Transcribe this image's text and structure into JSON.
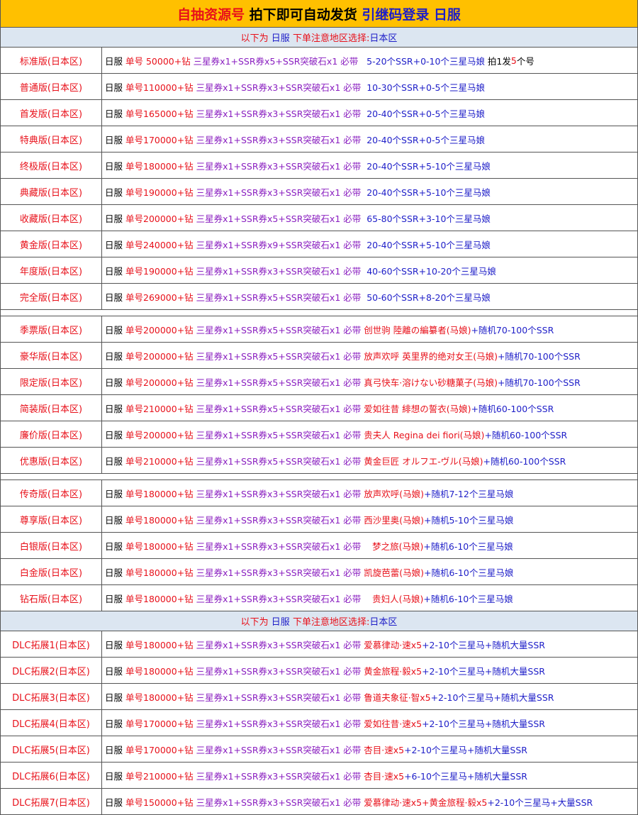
{
  "header": {
    "title": [
      {
        "text": "自抽资源号 ",
        "color": "#e8101a"
      },
      {
        "text": "拍下即可自动发货 ",
        "color": "#000000"
      },
      {
        "text": "引继码登录 日服",
        "color": "#1e1ec8"
      }
    ]
  },
  "sections": [
    {
      "subheader": [
        {
          "text": "以下为 ",
          "color": "#e8101a"
        },
        {
          "text": "日服 ",
          "color": "#1e1ec8"
        },
        {
          "text": "下单注意地区选择:",
          "color": "#e8101a"
        },
        {
          "text": "日本区",
          "color": "#1e1ec8"
        }
      ],
      "rows": [
        {
          "label": "标准版(日本区)",
          "desc": [
            {
              "text": "日服",
              "color": "#000000"
            },
            {
              "text": " 单号 50000+钻",
              "color": "#e8101a"
            },
            {
              "text": " 三星券x1+SSR券x5+SSR突破石x1 必带",
              "color": "#8a1fc0"
            },
            {
              "text": "   5-20个SSR+0-10个三星马娘",
              "color": "#1e1ec8"
            },
            {
              "text": " 拍1发",
              "color": "#000000"
            },
            {
              "text": "5",
              "color": "#e8101a"
            },
            {
              "text": "个号",
              "color": "#000000"
            }
          ]
        },
        {
          "label": "普通版(日本区)",
          "desc": [
            {
              "text": "日服",
              "color": "#000000"
            },
            {
              "text": " 单号110000+钻",
              "color": "#e8101a"
            },
            {
              "text": " 三星券x1+SSR券x3+SSR突破石x1 必带",
              "color": "#8a1fc0"
            },
            {
              "text": "  10-30个SSR+0-5个三星马娘",
              "color": "#1e1ec8"
            }
          ]
        },
        {
          "label": "首发版(日本区)",
          "desc": [
            {
              "text": "日服",
              "color": "#000000"
            },
            {
              "text": " 单号165000+钻",
              "color": "#e8101a"
            },
            {
              "text": " 三星券x1+SSR券x3+SSR突破石x1 必带",
              "color": "#8a1fc0"
            },
            {
              "text": "  20-40个SSR+0-5个三星马娘",
              "color": "#1e1ec8"
            }
          ]
        },
        {
          "label": "特典版(日本区)",
          "desc": [
            {
              "text": "日服",
              "color": "#000000"
            },
            {
              "text": " 单号170000+钻",
              "color": "#e8101a"
            },
            {
              "text": " 三星券x1+SSR券x3+SSR突破石x1 必带",
              "color": "#8a1fc0"
            },
            {
              "text": "  20-40个SSR+0-5个三星马娘",
              "color": "#1e1ec8"
            }
          ]
        },
        {
          "label": "终极版(日本区)",
          "desc": [
            {
              "text": "日服",
              "color": "#000000"
            },
            {
              "text": " 单号180000+钻",
              "color": "#e8101a"
            },
            {
              "text": " 三星券x1+SSR券x3+SSR突破石x1 必带",
              "color": "#8a1fc0"
            },
            {
              "text": "  20-40个SSR+5-10个三星马娘",
              "color": "#1e1ec8"
            }
          ]
        },
        {
          "label": "典藏版(日本区)",
          "desc": [
            {
              "text": "日服",
              "color": "#000000"
            },
            {
              "text": " 单号190000+钻",
              "color": "#e8101a"
            },
            {
              "text": " 三星券x1+SSR券x3+SSR突破石x1 必带",
              "color": "#8a1fc0"
            },
            {
              "text": "  20-40个SSR+5-10个三星马娘",
              "color": "#1e1ec8"
            }
          ]
        },
        {
          "label": "收藏版(日本区)",
          "desc": [
            {
              "text": "日服",
              "color": "#000000"
            },
            {
              "text": " 单号200000+钻",
              "color": "#e8101a"
            },
            {
              "text": " 三星券x1+SSR券x5+SSR突破石x1 必带",
              "color": "#8a1fc0"
            },
            {
              "text": "  65-80个SSR+3-10个三星马娘",
              "color": "#1e1ec8"
            }
          ]
        },
        {
          "label": "黄金版(日本区)",
          "desc": [
            {
              "text": "日服",
              "color": "#000000"
            },
            {
              "text": " 单号240000+钻",
              "color": "#e8101a"
            },
            {
              "text": " 三星券x1+SSR券x9+SSR突破石x1 必带",
              "color": "#8a1fc0"
            },
            {
              "text": "  20-40个SSR+5-10个三星马娘",
              "color": "#1e1ec8"
            }
          ]
        },
        {
          "label": "年度版(日本区)",
          "desc": [
            {
              "text": "日服",
              "color": "#000000"
            },
            {
              "text": " 单号190000+钻",
              "color": "#e8101a"
            },
            {
              "text": " 三星券x1+SSR券x3+SSR突破石x1 必带",
              "color": "#8a1fc0"
            },
            {
              "text": "  40-60个SSR+10-20个三星马娘",
              "color": "#1e1ec8"
            }
          ]
        },
        {
          "label": "完全版(日本区)",
          "desc": [
            {
              "text": "日服",
              "color": "#000000"
            },
            {
              "text": " 单号269000+钻",
              "color": "#e8101a"
            },
            {
              "text": " 三星券x1+SSR券x5+SSR突破石x1 必带",
              "color": "#8a1fc0"
            },
            {
              "text": "  50-60个SSR+8-20个三星马娘",
              "color": "#1e1ec8"
            }
          ]
        }
      ]
    },
    {
      "rows": [
        {
          "label": "季票版(日本区)",
          "desc": [
            {
              "text": "日服",
              "color": "#000000"
            },
            {
              "text": " 单号200000+钻",
              "color": "#e8101a"
            },
            {
              "text": " 三星券x1+SSR券x5+SSR突破石x1 必带",
              "color": "#8a1fc0"
            },
            {
              "text": " 创世驹 陸離の編纂者(马娘)",
              "color": "#e8101a"
            },
            {
              "text": "+随机70-100个SSR",
              "color": "#1e1ec8"
            }
          ]
        },
        {
          "label": "豪华版(日本区)",
          "desc": [
            {
              "text": "日服",
              "color": "#000000"
            },
            {
              "text": " 单号200000+钻",
              "color": "#e8101a"
            },
            {
              "text": " 三星券x1+SSR券x5+SSR突破石x1 必带",
              "color": "#8a1fc0"
            },
            {
              "text": " 放声欢呼 英里界的绝对女王(马娘)",
              "color": "#e8101a"
            },
            {
              "text": "+随机70-100个SSR",
              "color": "#1e1ec8"
            }
          ]
        },
        {
          "label": "限定版(日本区)",
          "desc": [
            {
              "text": "日服",
              "color": "#000000"
            },
            {
              "text": " 单号200000+钻",
              "color": "#e8101a"
            },
            {
              "text": " 三星券x1+SSR券x5+SSR突破石x1 必带",
              "color": "#8a1fc0"
            },
            {
              "text": " 真弓快车·溶けない砂糖菓子(马娘)",
              "color": "#e8101a"
            },
            {
              "text": "+随机70-100个SSR",
              "color": "#1e1ec8"
            }
          ]
        },
        {
          "label": "简装版(日本区)",
          "desc": [
            {
              "text": "日服",
              "color": "#000000"
            },
            {
              "text": " 单号210000+钻",
              "color": "#e8101a"
            },
            {
              "text": " 三星券x1+SSR券x5+SSR突破石x1 必带",
              "color": "#8a1fc0"
            },
            {
              "text": " 爱如往昔 緋想の誓衣(马娘)",
              "color": "#e8101a"
            },
            {
              "text": "+随机60-100个SSR",
              "color": "#1e1ec8"
            }
          ]
        },
        {
          "label": "廉价版(日本区)",
          "desc": [
            {
              "text": "日服",
              "color": "#000000"
            },
            {
              "text": " 单号200000+钻",
              "color": "#e8101a"
            },
            {
              "text": " 三星券x1+SSR券x5+SSR突破石x1 必带",
              "color": "#8a1fc0"
            },
            {
              "text": " 贵夫人 Regina dei fiori(马娘)",
              "color": "#e8101a"
            },
            {
              "text": "+随机60-100个SSR",
              "color": "#1e1ec8"
            }
          ]
        },
        {
          "label": "优惠版(日本区)",
          "desc": [
            {
              "text": "日服",
              "color": "#000000"
            },
            {
              "text": " 单号210000+钻",
              "color": "#e8101a"
            },
            {
              "text": " 三星券x1+SSR券x5+SSR突破石x1 必带",
              "color": "#8a1fc0"
            },
            {
              "text": " 黄金巨匠 オルフエ-ヴル(马娘)",
              "color": "#e8101a"
            },
            {
              "text": "+随机60-100个SSR",
              "color": "#1e1ec8"
            }
          ]
        }
      ]
    },
    {
      "rows": [
        {
          "label": "传奇版(日本区)",
          "desc": [
            {
              "text": "日服",
              "color": "#000000"
            },
            {
              "text": " 单号180000+钻",
              "color": "#e8101a"
            },
            {
              "text": " 三星券x1+SSR券x3+SSR突破石x1 必带",
              "color": "#8a1fc0"
            },
            {
              "text": " 放声欢呼(马娘)",
              "color": "#e8101a"
            },
            {
              "text": "+随机7-12个三星马娘",
              "color": "#1e1ec8"
            }
          ]
        },
        {
          "label": "尊享版(日本区)",
          "desc": [
            {
              "text": "日服",
              "color": "#000000"
            },
            {
              "text": " 单号180000+钻",
              "color": "#e8101a"
            },
            {
              "text": " 三星券x1+SSR券x3+SSR突破石x1 必带",
              "color": "#8a1fc0"
            },
            {
              "text": " 西沙里奥(马娘)",
              "color": "#e8101a"
            },
            {
              "text": "+随机5-10个三星马娘",
              "color": "#1e1ec8"
            }
          ]
        },
        {
          "label": "白银版(日本区)",
          "desc": [
            {
              "text": "日服",
              "color": "#000000"
            },
            {
              "text": " 单号180000+钻",
              "color": "#e8101a"
            },
            {
              "text": " 三星券x1+SSR券x3+SSR突破石x1 必带",
              "color": "#8a1fc0"
            },
            {
              "text": "    梦之旅(马娘)",
              "color": "#e8101a"
            },
            {
              "text": "+随机6-10个三星马娘",
              "color": "#1e1ec8"
            }
          ]
        },
        {
          "label": "白金版(日本区)",
          "desc": [
            {
              "text": "日服",
              "color": "#000000"
            },
            {
              "text": " 单号180000+钻",
              "color": "#e8101a"
            },
            {
              "text": " 三星券x1+SSR券x3+SSR突破石x1 必带",
              "color": "#8a1fc0"
            },
            {
              "text": " 凯旋芭蕾(马娘)",
              "color": "#e8101a"
            },
            {
              "text": "+随机6-10个三星马娘",
              "color": "#1e1ec8"
            }
          ]
        },
        {
          "label": "钻石版(日本区)",
          "desc": [
            {
              "text": "日服",
              "color": "#000000"
            },
            {
              "text": " 单号180000+钻",
              "color": "#e8101a"
            },
            {
              "text": " 三星券x1+SSR券x3+SSR突破石x1 必带",
              "color": "#8a1fc0"
            },
            {
              "text": "    贵妇人(马娘)",
              "color": "#e8101a"
            },
            {
              "text": "+随机6-10个三星马娘",
              "color": "#1e1ec8"
            }
          ]
        }
      ]
    },
    {
      "subheader": [
        {
          "text": "以下为 ",
          "color": "#e8101a"
        },
        {
          "text": "日服 ",
          "color": "#1e1ec8"
        },
        {
          "text": "下单注意地区选择:",
          "color": "#e8101a"
        },
        {
          "text": "日本区",
          "color": "#1e1ec8"
        }
      ],
      "rows": [
        {
          "label": "DLC拓展1(日本区)",
          "desc": [
            {
              "text": "日服",
              "color": "#000000"
            },
            {
              "text": " 单号180000+钻",
              "color": "#e8101a"
            },
            {
              "text": " 三星券x1+SSR券x3+SSR突破石x1 必带",
              "color": "#8a1fc0"
            },
            {
              "text": " 爱慕律动·速x5",
              "color": "#e8101a"
            },
            {
              "text": "+2-10个三星马+随机大量SSR",
              "color": "#1e1ec8"
            }
          ]
        },
        {
          "label": "DLC拓展2(日本区)",
          "desc": [
            {
              "text": "日服",
              "color": "#000000"
            },
            {
              "text": " 单号180000+钻",
              "color": "#e8101a"
            },
            {
              "text": " 三星券x1+SSR券x3+SSR突破石x1 必带",
              "color": "#8a1fc0"
            },
            {
              "text": " 黄金旅程·毅x5",
              "color": "#e8101a"
            },
            {
              "text": "+2-10个三星马+随机大量SSR",
              "color": "#1e1ec8"
            }
          ]
        },
        {
          "label": "DLC拓展3(日本区)",
          "desc": [
            {
              "text": "日服",
              "color": "#000000"
            },
            {
              "text": " 单号180000+钻",
              "color": "#e8101a"
            },
            {
              "text": " 三星券x1+SSR券x3+SSR突破石x1 必带",
              "color": "#8a1fc0"
            },
            {
              "text": " 鲁道夫象征·智x5",
              "color": "#e8101a"
            },
            {
              "text": "+2-10个三星马+随机大量SSR",
              "color": "#1e1ec8"
            }
          ]
        },
        {
          "label": "DLC拓展4(日本区)",
          "desc": [
            {
              "text": "日服",
              "color": "#000000"
            },
            {
              "text": " 单号170000+钻",
              "color": "#e8101a"
            },
            {
              "text": " 三星券x1+SSR券x3+SSR突破石x1 必带",
              "color": "#8a1fc0"
            },
            {
              "text": " 爱如往昔·速x5",
              "color": "#e8101a"
            },
            {
              "text": "+2-10个三星马+随机大量SSR",
              "color": "#1e1ec8"
            }
          ]
        },
        {
          "label": "DLC拓展5(日本区)",
          "desc": [
            {
              "text": "日服",
              "color": "#000000"
            },
            {
              "text": " 单号170000+钻",
              "color": "#e8101a"
            },
            {
              "text": " 三星券x1+SSR券x3+SSR突破石x1 必带",
              "color": "#8a1fc0"
            },
            {
              "text": " 杏目·速x5",
              "color": "#e8101a"
            },
            {
              "text": "+2-10个三星马+随机大量SSR",
              "color": "#1e1ec8"
            }
          ]
        },
        {
          "label": "DLC拓展6(日本区)",
          "desc": [
            {
              "text": "日服",
              "color": "#000000"
            },
            {
              "text": " 单号210000+钻",
              "color": "#e8101a"
            },
            {
              "text": " 三星券x1+SSR券x3+SSR突破石x1 必带",
              "color": "#8a1fc0"
            },
            {
              "text": " 杏目·速x5",
              "color": "#e8101a"
            },
            {
              "text": "+6-10个三星马+随机大量SSR",
              "color": "#1e1ec8"
            }
          ]
        },
        {
          "label": "DLC拓展7(日本区)",
          "desc": [
            {
              "text": "日服",
              "color": "#000000"
            },
            {
              "text": " 单号150000+钻",
              "color": "#e8101a"
            },
            {
              "text": " 三星券x1+SSR券x3+SSR突破石x1 必带",
              "color": "#8a1fc0"
            },
            {
              "text": " 爱慕律动·速x5+黄金旅程·毅x5",
              "color": "#e8101a"
            },
            {
              "text": "+2-10个三星马+大量SSR",
              "color": "#1e1ec8"
            }
          ]
        }
      ]
    }
  ]
}
